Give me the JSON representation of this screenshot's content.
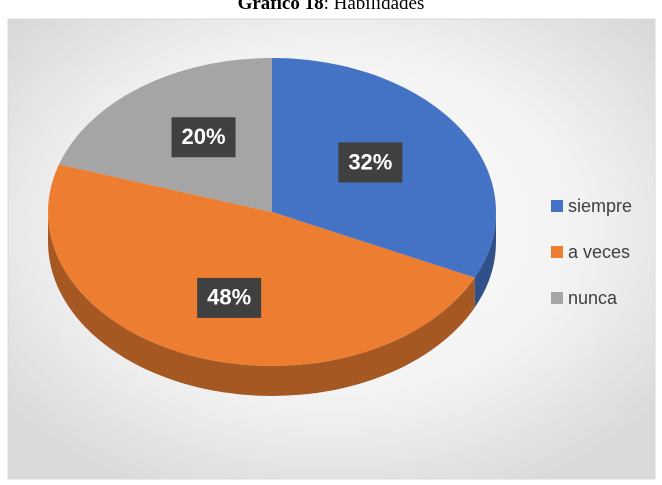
{
  "chart_data": {
    "type": "pie3d",
    "title": [
      "Gráfico 18",
      ": Habilidades"
    ],
    "categories": [
      "siempre",
      "a veces",
      "nunca"
    ],
    "values": [
      32,
      48,
      20
    ],
    "value_labels": [
      "32%",
      "48%",
      "20%"
    ],
    "colors": [
      "#4472c4",
      "#ed7d31",
      "#a5a5a5"
    ],
    "legend": "right"
  }
}
